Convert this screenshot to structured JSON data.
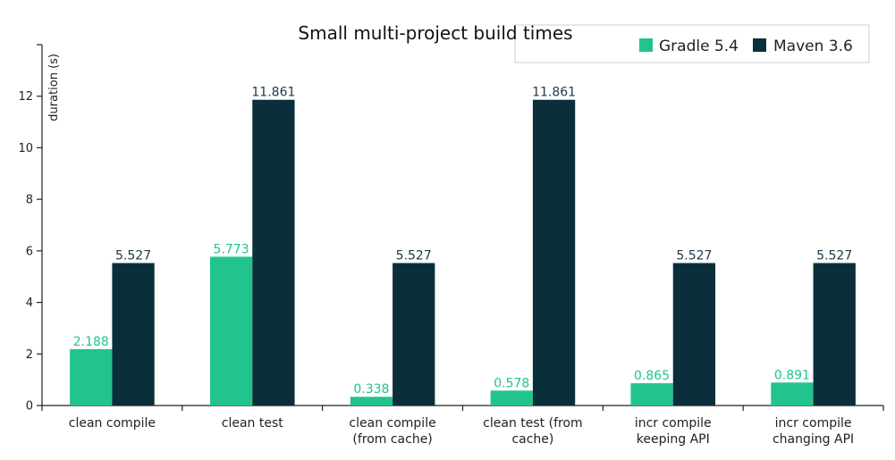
{
  "chart_data": {
    "type": "bar",
    "title": "Small multi-project build times",
    "xlabel": "",
    "ylabel": "duration (s)",
    "ylim": [
      0,
      14
    ],
    "yticks": [
      0,
      2,
      4,
      6,
      8,
      10,
      12
    ],
    "grid": false,
    "legend_position": "top-right",
    "categories": [
      [
        "clean compile"
      ],
      [
        "clean test"
      ],
      [
        "clean compile",
        "(from cache)"
      ],
      [
        "clean test (from",
        "cache)"
      ],
      [
        "incr compile",
        "keeping API"
      ],
      [
        "incr compile",
        "changing API"
      ]
    ],
    "series": [
      {
        "name": "Gradle 5.4",
        "color": "#22c38c",
        "values": [
          2.188,
          5.773,
          0.338,
          0.578,
          0.865,
          0.891
        ],
        "labels": [
          "2.188",
          "5.773",
          "0.338",
          "0.578",
          "0.865",
          "0.891"
        ]
      },
      {
        "name": "Maven 3.6",
        "color": "#0a2f3a",
        "values": [
          5.527,
          11.861,
          5.527,
          11.861,
          5.527,
          5.527
        ],
        "labels": [
          "5.527",
          "11.861",
          "5.527",
          "11.861",
          "5.527",
          "5.527"
        ]
      }
    ]
  }
}
